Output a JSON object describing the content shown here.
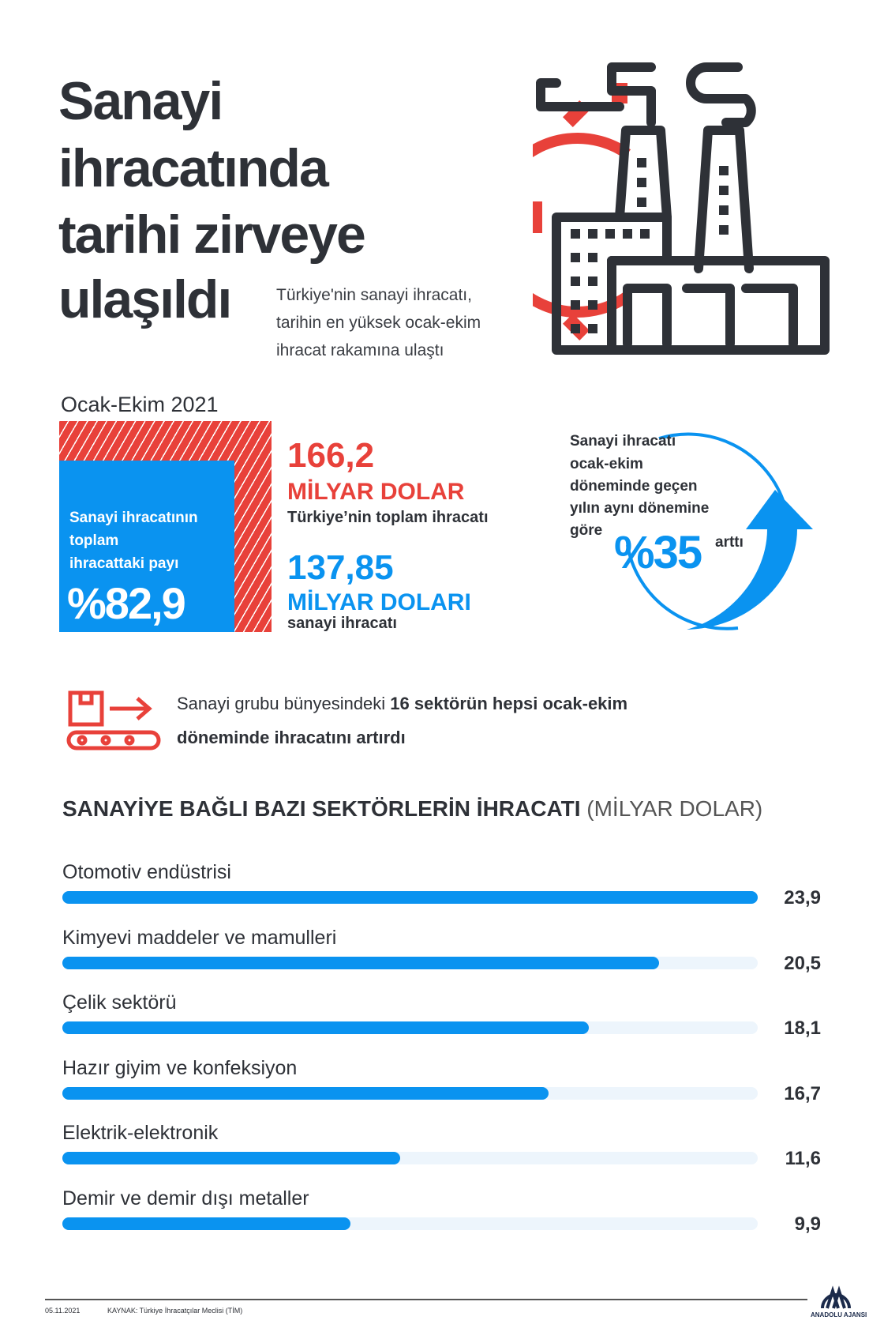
{
  "title_lines": [
    "Sanayi",
    "ihracatında",
    "tarihi zirveye",
    "ulaşıldı"
  ],
  "subtitle_lines": [
    "Türkiye'nin sanayi ihracatı,",
    "tarihin en yüksek ocak-ekim",
    "ihracat rakamına ulaştı"
  ],
  "period": "Ocak-Ekim 2021",
  "share_box": {
    "lines": [
      "Sanayi ihracatının",
      "toplam",
      "ihracattaki payı"
    ],
    "value": "%82,9"
  },
  "total": {
    "value": "166,2",
    "unit": "MİLYAR DOLAR",
    "label": "Türkiye’nin toplam ihracatı"
  },
  "industry": {
    "value": "137,85",
    "unit": "MİLYAR DOLARI",
    "label": "sanayi ihracatı"
  },
  "growth": {
    "lines": [
      "Sanayi ihracatı",
      "ocak-ekim",
      "döneminde geçen",
      "yılın aynı dönemine",
      "göre"
    ],
    "value": "%35",
    "suffix": "arttı"
  },
  "note": {
    "prefix": "Sanayi grubu bünyesindeki ",
    "bold1": "16 sektörün hepsi ocak-ekim",
    "bold2": "döneminde ihracatını artırdı"
  },
  "chart_data": {
    "type": "bar",
    "title": "SANAYİYE BAĞLI BAZI SEKTÖRLERİN İHRACATI",
    "unit": "(MİLYAR DOLAR)",
    "categories": [
      "Otomotiv endüstrisi",
      "Kimyevi maddeler ve mamulleri",
      "Çelik sektörü",
      "Hazır giyim ve konfeksiyon",
      "Elektrik-elektronik",
      "Demir ve demir dışı metaller"
    ],
    "values": [
      23.9,
      20.5,
      18.1,
      16.7,
      11.6,
      9.9
    ],
    "value_labels": [
      "23,9",
      "20,5",
      "18,1",
      "16,7",
      "11,6",
      "9,9"
    ],
    "xlim": [
      0,
      23.9
    ]
  },
  "footer": {
    "date": "05.11.2021",
    "source": "KAYNAK: Türkiye İhracatçılar Meclisi (TİM)",
    "logo_text": "ANADOLU AJANSI"
  },
  "colors": {
    "red": "#e8413a",
    "blue": "#0a93f0",
    "dark": "#2e3137"
  }
}
